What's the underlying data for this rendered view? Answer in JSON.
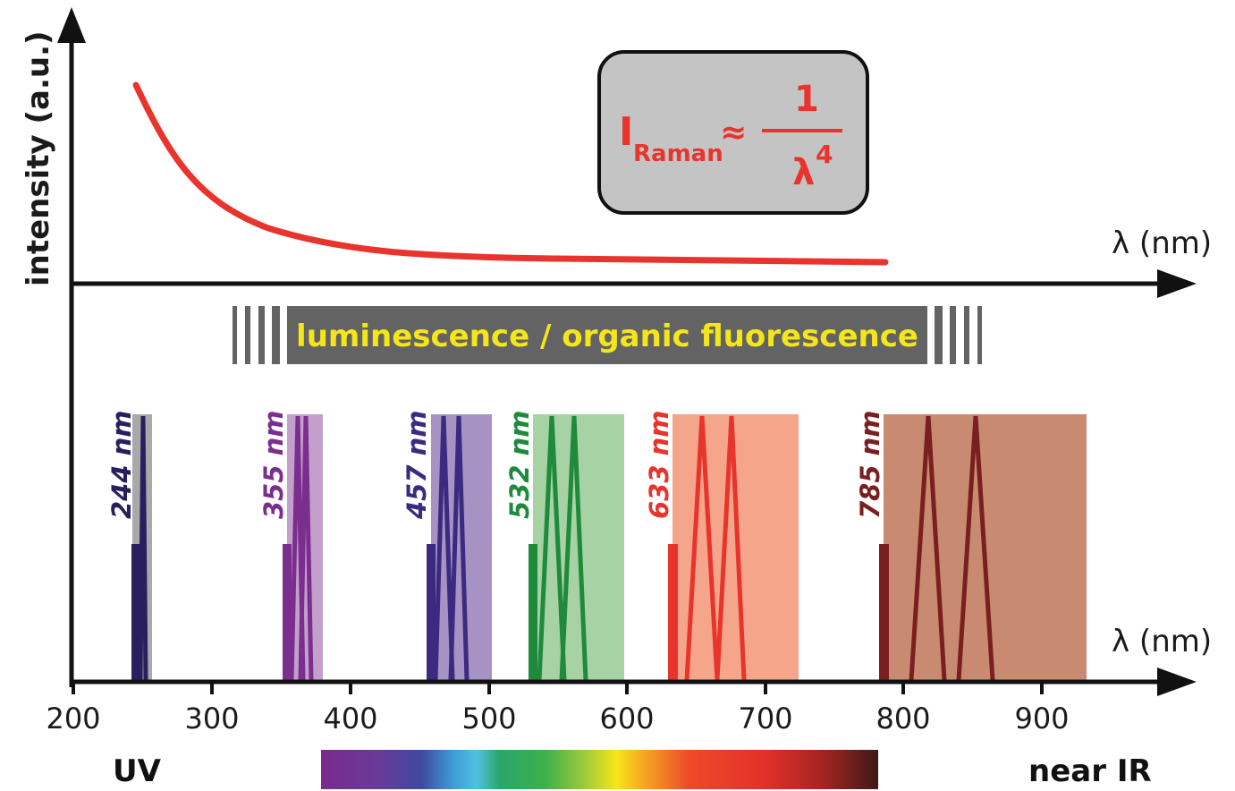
{
  "top_plot": {
    "y_axis_label": "intensity (a.u.)",
    "x_axis_unit": "λ (nm)",
    "curve_color": "#e8342c",
    "formula": {
      "symbol": "I",
      "subscript": "Raman",
      "relation": "≈",
      "numerator": "1",
      "denominator_base": "λ",
      "denominator_exponent": "4",
      "box_color": "#c4c4c4"
    }
  },
  "fluorescence_band": {
    "label": "luminescence / organic fluorescence",
    "color": "#636363",
    "text_color": "#f4e61a"
  },
  "bottom_plot": {
    "x_axis_unit": "λ (nm)",
    "ticks": [
      "200",
      "300",
      "400",
      "500",
      "600",
      "700",
      "800",
      "900"
    ],
    "lasers": [
      {
        "label": "244 nm",
        "color": "#2a1f5e",
        "shade": "#a9a9a9"
      },
      {
        "label": "355 nm",
        "color": "#7b2e8e",
        "shade": "#c39fcc"
      },
      {
        "label": "457 nm",
        "color": "#3b2a80",
        "shade": "#a692c3"
      },
      {
        "label": "532 nm",
        "color": "#1f8a3b",
        "shade": "#a6d2a4"
      },
      {
        "label": "633 nm",
        "color": "#e8342c",
        "shade": "#f4a58a"
      },
      {
        "label": "785 nm",
        "color": "#7a1f1f",
        "shade": "#c98a72"
      }
    ]
  },
  "spectrum_bar": {
    "left_label": "UV",
    "right_label": "near IR"
  }
}
